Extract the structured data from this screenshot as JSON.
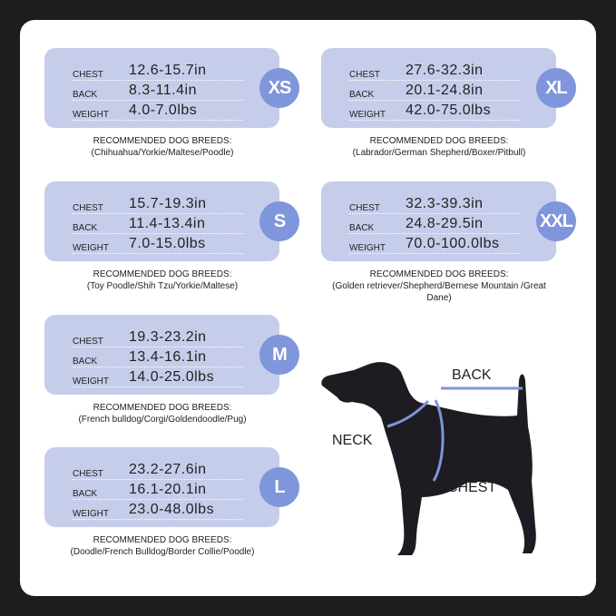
{
  "labels": {
    "chest": "CHEST",
    "back": "BACK",
    "weight": "WEIGHT",
    "recommended": "RECOMMENDED DOG BREEDS:"
  },
  "sizes": [
    {
      "size": "XS",
      "chest": "12.6-15.7in",
      "back": "8.3-11.4in",
      "weight": "4.0-7.0lbs",
      "breeds": "(Chihuahua/Yorkie/Maltese/Poodle)"
    },
    {
      "size": "S",
      "chest": "15.7-19.3in",
      "back": "11.4-13.4in",
      "weight": "7.0-15.0lbs",
      "breeds": "(Toy Poodle/Shih Tzu/Yorkie/Maltese)"
    },
    {
      "size": "M",
      "chest": "19.3-23.2in",
      "back": "13.4-16.1in",
      "weight": "14.0-25.0lbs",
      "breeds": "(French bulldog/Corgi/Goldendoodle/Pug)"
    },
    {
      "size": "L",
      "chest": "23.2-27.6in",
      "back": "16.1-20.1in",
      "weight": "23.0-48.0lbs",
      "breeds": "(Doodle/French Bulldog/Border Collie/Poodle)"
    },
    {
      "size": "XL",
      "chest": "27.6-32.3in",
      "back": "20.1-24.8in",
      "weight": "42.0-75.0lbs",
      "breeds": "(Labrador/German Shepherd/Boxer/Pitbull)"
    },
    {
      "size": "XXL",
      "chest": "32.3-39.3in",
      "back": "24.8-29.5in",
      "weight": "70.0-100.0lbs",
      "breeds": "(Golden retriever/Shepherd/Bernese Mountain /Great Dane)"
    }
  ],
  "diagram": {
    "back": "BACK",
    "neck": "NECK",
    "chest": "CHEST"
  },
  "colors": {
    "box": "#c6cdea",
    "circle": "#7f95dc",
    "measure_line": "#7f95dc"
  }
}
